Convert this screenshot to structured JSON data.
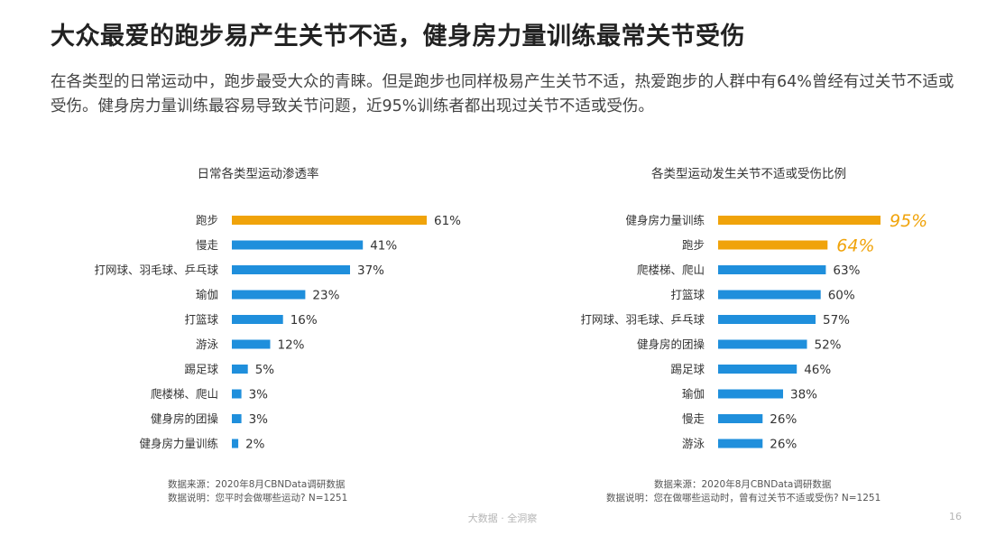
{
  "header": {
    "title": "大众最爱的跑步易产生关节不适，健身房力量训练最常关节受伤",
    "subtitle": "在各类型的日常运动中，跑步最受大众的青睐。但是跑步也同样极易产生关节不适，热爱跑步的人群中有64%曾经有过关节不适或受伤。健身房力量训练最容易导致关节问题，近95%训练者都出现过关节不适或受伤。"
  },
  "colors": {
    "highlight": "#f0a30a",
    "bar": "#1f8fdc"
  },
  "chart_data": [
    {
      "type": "bar",
      "orientation": "horizontal",
      "title": "日常各类型运动渗透率",
      "categories": [
        "跑步",
        "慢走",
        "打网球、羽毛球、乒乓球",
        "瑜伽",
        "打篮球",
        "游泳",
        "踢足球",
        "爬楼梯、爬山",
        "健身房的团操",
        "健身房力量训练"
      ],
      "values": [
        61,
        41,
        37,
        23,
        16,
        12,
        5,
        3,
        3,
        2
      ],
      "labels": [
        "61%",
        "41%",
        "37%",
        "23%",
        "16%",
        "12%",
        "5%",
        "3%",
        "3%",
        "2%"
      ],
      "highlight": [
        0
      ],
      "note_source": "数据来源：2020年8月CBNData调研数据",
      "note_desc": "数据说明：您平时会做哪些运动? N=1251"
    },
    {
      "type": "bar",
      "orientation": "horizontal",
      "title": "各类型运动发生关节不适或受伤比例",
      "categories": [
        "健身房力量训练",
        "跑步",
        "爬楼梯、爬山",
        "打篮球",
        "打网球、羽毛球、乒乓球",
        "健身房的团操",
        "踢足球",
        "瑜伽",
        "慢走",
        "游泳"
      ],
      "values": [
        95,
        64,
        63,
        60,
        57,
        52,
        46,
        38,
        26,
        26
      ],
      "labels": [
        "95%",
        "64%",
        "63%",
        "60%",
        "57%",
        "52%",
        "46%",
        "38%",
        "26%",
        "26%"
      ],
      "highlight": [
        0,
        1
      ],
      "note_source": "数据来源：2020年8月CBNData调研数据",
      "note_desc": "数据说明：您在做哪些运动时，曾有过关节不适或受伤? N=1251"
    }
  ],
  "footer": {
    "brand": "大数据 · 全洞察",
    "page": "16"
  }
}
